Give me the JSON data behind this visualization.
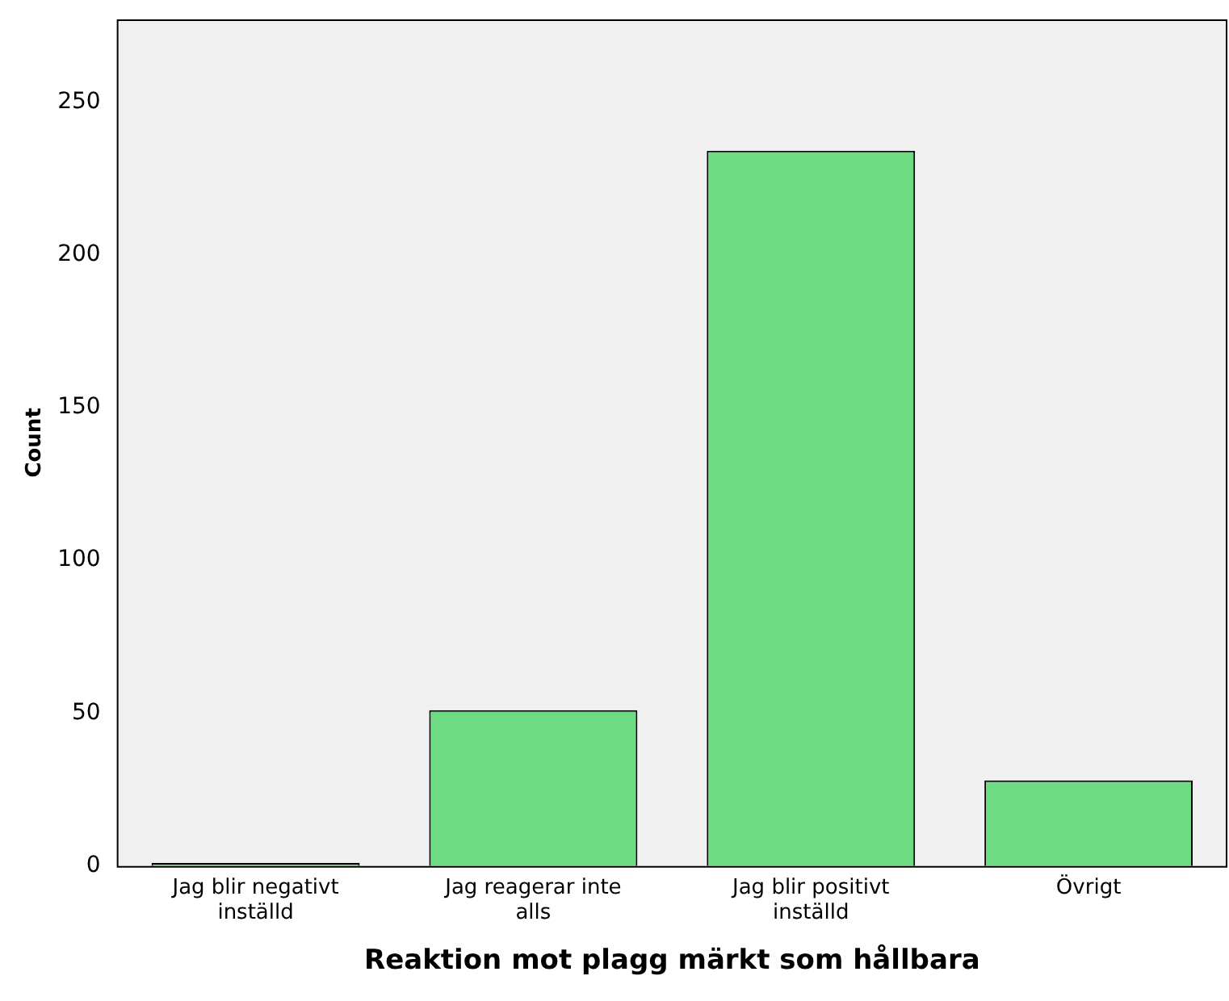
{
  "chart_data": {
    "type": "bar",
    "xlabel": "Reaktion mot plagg märkt som hållbara",
    "ylabel": "Count",
    "categories": [
      "Jag blir negativt inställd",
      "Jag reagerar inte alls",
      "Jag blir positivt inställd",
      "Övrigt"
    ],
    "values": [
      1,
      51,
      234,
      28
    ],
    "color": "#6fdc84",
    "ylim": [
      0,
      277
    ],
    "yticks": [
      0,
      50,
      100,
      150,
      200,
      250
    ],
    "grid": false,
    "legend": false
  }
}
